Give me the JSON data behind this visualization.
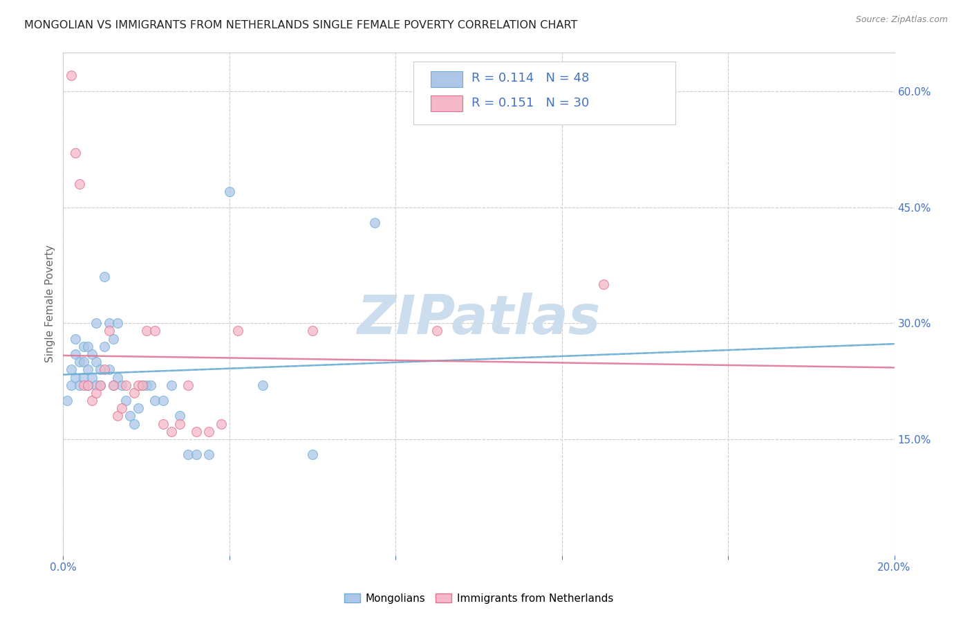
{
  "title": "MONGOLIAN VS IMMIGRANTS FROM NETHERLANDS SINGLE FEMALE POVERTY CORRELATION CHART",
  "source": "Source: ZipAtlas.com",
  "ylabel": "Single Female Poverty",
  "xlim": [
    0.0,
    0.2
  ],
  "ylim": [
    0.0,
    0.65
  ],
  "mongolian_color": "#aec6e8",
  "mongolian_edge_color": "#6baed6",
  "netherlands_color": "#f4b8c8",
  "netherlands_edge_color": "#e07090",
  "mongolian_line_color": "#6baed6",
  "netherlands_line_color": "#e07090",
  "mongolian_R": 0.114,
  "mongolian_N": 48,
  "netherlands_R": 0.151,
  "netherlands_N": 30,
  "watermark": "ZIPatlas",
  "watermark_color": "#ccdded",
  "legend_text_color": "#4472c4",
  "background_color": "#ffffff",
  "mongolian_x": [
    0.001,
    0.002,
    0.002,
    0.003,
    0.003,
    0.003,
    0.004,
    0.004,
    0.005,
    0.005,
    0.005,
    0.006,
    0.006,
    0.006,
    0.007,
    0.007,
    0.008,
    0.008,
    0.008,
    0.009,
    0.009,
    0.01,
    0.01,
    0.011,
    0.011,
    0.012,
    0.012,
    0.013,
    0.013,
    0.014,
    0.015,
    0.016,
    0.017,
    0.018,
    0.019,
    0.02,
    0.021,
    0.022,
    0.024,
    0.026,
    0.028,
    0.03,
    0.032,
    0.035,
    0.04,
    0.048,
    0.06,
    0.075
  ],
  "mongolian_y": [
    0.2,
    0.22,
    0.24,
    0.23,
    0.26,
    0.28,
    0.25,
    0.22,
    0.23,
    0.25,
    0.27,
    0.24,
    0.22,
    0.27,
    0.23,
    0.26,
    0.3,
    0.22,
    0.25,
    0.22,
    0.24,
    0.27,
    0.36,
    0.3,
    0.24,
    0.22,
    0.28,
    0.23,
    0.3,
    0.22,
    0.2,
    0.18,
    0.17,
    0.19,
    0.22,
    0.22,
    0.22,
    0.2,
    0.2,
    0.22,
    0.18,
    0.13,
    0.13,
    0.13,
    0.47,
    0.22,
    0.13,
    0.43
  ],
  "netherlands_x": [
    0.002,
    0.003,
    0.004,
    0.005,
    0.006,
    0.007,
    0.008,
    0.009,
    0.01,
    0.011,
    0.012,
    0.013,
    0.014,
    0.015,
    0.017,
    0.018,
    0.019,
    0.02,
    0.022,
    0.024,
    0.026,
    0.028,
    0.03,
    0.032,
    0.035,
    0.038,
    0.042,
    0.06,
    0.09,
    0.13
  ],
  "netherlands_y": [
    0.62,
    0.52,
    0.48,
    0.22,
    0.22,
    0.2,
    0.21,
    0.22,
    0.24,
    0.29,
    0.22,
    0.18,
    0.19,
    0.22,
    0.21,
    0.22,
    0.22,
    0.29,
    0.29,
    0.17,
    0.16,
    0.17,
    0.22,
    0.16,
    0.16,
    0.17,
    0.29,
    0.29,
    0.29,
    0.35
  ]
}
